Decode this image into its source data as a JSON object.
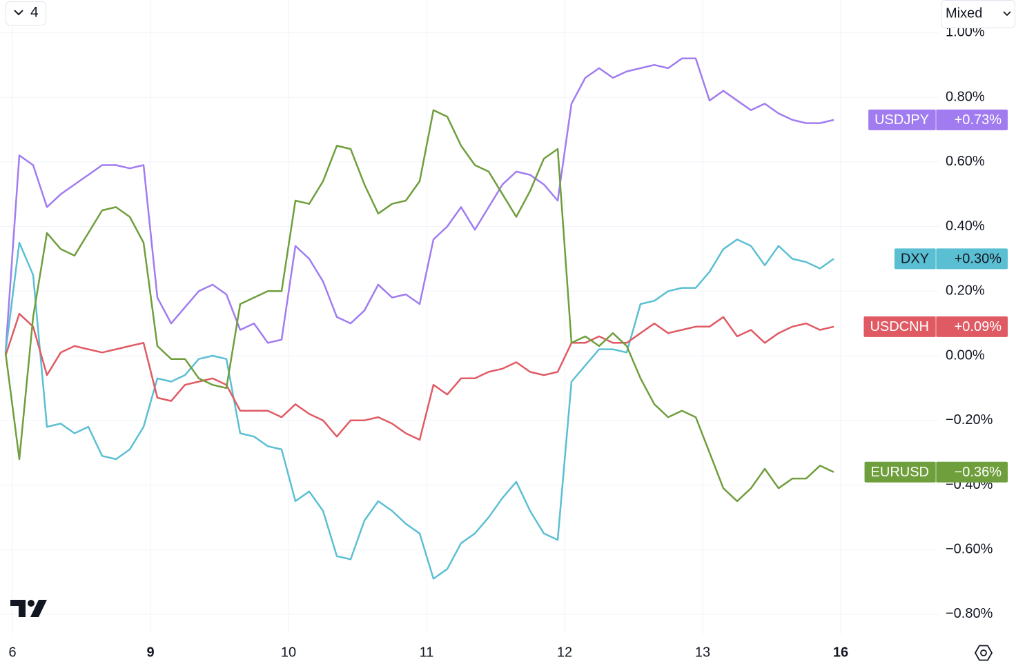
{
  "ui": {
    "interval_button": "4",
    "scale_mode": "Mixed"
  },
  "chart_data": {
    "type": "line",
    "x": [
      -0.05,
      0.05,
      0.15,
      0.25,
      0.35,
      0.45,
      0.55,
      0.65,
      0.75,
      0.85,
      0.95,
      1.05,
      1.15,
      1.25,
      1.35,
      1.45,
      1.55,
      1.65,
      1.75,
      1.85,
      1.95,
      2.05,
      2.15,
      2.25,
      2.35,
      2.45,
      2.55,
      2.65,
      2.75,
      2.85,
      2.95,
      3.05,
      3.15,
      3.25,
      3.35,
      3.45,
      3.55,
      3.65,
      3.75,
      3.85,
      3.95,
      4.05,
      4.15,
      4.25,
      4.35,
      4.45,
      4.55,
      4.65,
      4.75,
      4.85,
      4.95,
      5.05,
      5.15,
      5.25,
      5.35,
      5.45,
      5.55,
      5.65,
      5.75,
      5.85,
      5.95
    ],
    "xlim": [
      -0.09,
      6.71
    ],
    "xticks": [
      {
        "value": 0,
        "label": "6"
      },
      {
        "value": 1,
        "label": "9"
      },
      {
        "value": 2,
        "label": "10"
      },
      {
        "value": 3,
        "label": "11"
      },
      {
        "value": 4,
        "label": "12"
      },
      {
        "value": 5,
        "label": "13"
      },
      {
        "value": 6,
        "label": "16"
      }
    ],
    "ylim": [
      -0.862,
      1.101
    ],
    "yticks": [
      {
        "value": -0.8,
        "label": "−0.80%"
      },
      {
        "value": -0.6,
        "label": "−0.60%"
      },
      {
        "value": -0.4,
        "label": "−0.40%"
      },
      {
        "value": -0.2,
        "label": "−0.20%"
      },
      {
        "value": 0,
        "label": "0.00%"
      },
      {
        "value": 0.2,
        "label": "0.20%"
      },
      {
        "value": 0.4,
        "label": "0.40%"
      },
      {
        "value": 0.6,
        "label": "0.60%"
      },
      {
        "value": 0.8,
        "label": "0.80%"
      },
      {
        "value": 1.0,
        "label": "1.00%"
      }
    ],
    "grid": true,
    "series": [
      {
        "name": "USDJPY",
        "color": "#a07cf0",
        "values": [
          0.01,
          0.62,
          0.59,
          0.46,
          0.5,
          0.53,
          0.56,
          0.59,
          0.59,
          0.58,
          0.59,
          0.18,
          0.1,
          0.15,
          0.2,
          0.22,
          0.19,
          0.08,
          0.1,
          0.04,
          0.05,
          0.34,
          0.3,
          0.23,
          0.12,
          0.1,
          0.14,
          0.22,
          0.18,
          0.19,
          0.16,
          0.36,
          0.4,
          0.46,
          0.39,
          0.46,
          0.53,
          0.57,
          0.56,
          0.53,
          0.48,
          0.78,
          0.86,
          0.89,
          0.86,
          0.88,
          0.89,
          0.9,
          0.89,
          0.92,
          0.92,
          0.79,
          0.82,
          0.79,
          0.76,
          0.78,
          0.75,
          0.73,
          0.72,
          0.72,
          0.73
        ],
        "value_labels": [
          null,
          null,
          null,
          null,
          null,
          null,
          null,
          null,
          null,
          null,
          null,
          null,
          null,
          null,
          null,
          null,
          null,
          null,
          null,
          null,
          null,
          null,
          null,
          null,
          null,
          null,
          null,
          null,
          null,
          null,
          null,
          null,
          null,
          null,
          null,
          null,
          null,
          null,
          null,
          null,
          null,
          null,
          null,
          null,
          null,
          null,
          null,
          null,
          null,
          null,
          null,
          null,
          null,
          null,
          null,
          null,
          null,
          null,
          null,
          null,
          "+0.73%"
        ]
      },
      {
        "name": "DXY",
        "color": "#5bbfd3",
        "values": [
          0.01,
          0.35,
          0.25,
          -0.22,
          -0.21,
          -0.24,
          -0.22,
          -0.31,
          -0.32,
          -0.29,
          -0.22,
          -0.07,
          -0.08,
          -0.06,
          -0.01,
          0.0,
          -0.01,
          -0.24,
          -0.25,
          -0.28,
          -0.29,
          -0.45,
          -0.42,
          -0.48,
          -0.62,
          -0.63,
          -0.51,
          -0.45,
          -0.48,
          -0.52,
          -0.55,
          -0.69,
          -0.66,
          -0.58,
          -0.55,
          -0.5,
          -0.44,
          -0.39,
          -0.48,
          -0.55,
          -0.57,
          -0.08,
          -0.03,
          0.02,
          0.02,
          0.01,
          0.16,
          0.17,
          0.2,
          0.21,
          0.21,
          0.26,
          0.33,
          0.36,
          0.34,
          0.28,
          0.34,
          0.3,
          0.29,
          0.27,
          0.3
        ],
        "value_labels": [
          null,
          null,
          null,
          null,
          null,
          null,
          null,
          null,
          null,
          null,
          null,
          null,
          null,
          null,
          null,
          null,
          null,
          null,
          null,
          null,
          null,
          null,
          null,
          null,
          null,
          null,
          null,
          null,
          null,
          null,
          null,
          null,
          null,
          null,
          null,
          null,
          null,
          null,
          null,
          null,
          null,
          null,
          null,
          null,
          null,
          null,
          null,
          null,
          null,
          null,
          null,
          null,
          null,
          null,
          null,
          null,
          null,
          null,
          null,
          null,
          "+0.30%"
        ]
      },
      {
        "name": "USDCNH",
        "color": "#e05a63",
        "values": [
          0.0,
          0.13,
          0.09,
          -0.06,
          0.01,
          0.03,
          0.02,
          0.01,
          0.02,
          0.03,
          0.04,
          -0.13,
          -0.14,
          -0.09,
          -0.08,
          -0.07,
          -0.09,
          -0.17,
          -0.17,
          -0.17,
          -0.19,
          -0.15,
          -0.18,
          -0.2,
          -0.25,
          -0.2,
          -0.2,
          -0.19,
          -0.21,
          -0.24,
          -0.26,
          -0.09,
          -0.12,
          -0.07,
          -0.07,
          -0.05,
          -0.04,
          -0.02,
          -0.05,
          -0.06,
          -0.05,
          0.04,
          0.04,
          0.06,
          0.04,
          0.04,
          0.07,
          0.1,
          0.07,
          0.08,
          0.09,
          0.09,
          0.12,
          0.06,
          0.08,
          0.04,
          0.07,
          0.09,
          0.1,
          0.08,
          0.09
        ],
        "value_labels": [
          null,
          null,
          null,
          null,
          null,
          null,
          null,
          null,
          null,
          null,
          null,
          null,
          null,
          null,
          null,
          null,
          null,
          null,
          null,
          null,
          null,
          null,
          null,
          null,
          null,
          null,
          null,
          null,
          null,
          null,
          null,
          null,
          null,
          null,
          null,
          null,
          null,
          null,
          null,
          null,
          null,
          null,
          null,
          null,
          null,
          null,
          null,
          null,
          null,
          null,
          null,
          null,
          null,
          null,
          null,
          null,
          null,
          null,
          null,
          null,
          "+0.09%"
        ]
      },
      {
        "name": "EURUSD",
        "color": "#6f9e3c",
        "values": [
          0.01,
          -0.32,
          0.12,
          0.38,
          0.33,
          0.31,
          0.38,
          0.45,
          0.46,
          0.43,
          0.35,
          0.03,
          -0.01,
          -0.01,
          -0.07,
          -0.09,
          -0.1,
          0.16,
          0.18,
          0.2,
          0.2,
          0.48,
          0.47,
          0.54,
          0.65,
          0.64,
          0.53,
          0.44,
          0.47,
          0.48,
          0.54,
          0.76,
          0.74,
          0.65,
          0.59,
          0.57,
          0.5,
          0.43,
          0.51,
          0.61,
          0.64,
          0.04,
          0.06,
          0.03,
          0.07,
          0.03,
          -0.07,
          -0.15,
          -0.19,
          -0.17,
          -0.19,
          -0.3,
          -0.41,
          -0.45,
          -0.41,
          -0.35,
          -0.41,
          -0.38,
          -0.38,
          -0.34,
          -0.36
        ],
        "value_labels": [
          null,
          null,
          null,
          null,
          null,
          null,
          null,
          null,
          null,
          null,
          null,
          null,
          null,
          null,
          null,
          null,
          null,
          null,
          null,
          null,
          null,
          null,
          null,
          null,
          null,
          null,
          null,
          null,
          null,
          null,
          null,
          null,
          null,
          null,
          null,
          null,
          null,
          null,
          null,
          null,
          null,
          null,
          null,
          null,
          null,
          null,
          null,
          null,
          null,
          null,
          null,
          null,
          null,
          null,
          null,
          null,
          null,
          null,
          null,
          null,
          "−0.36%"
        ]
      }
    ]
  }
}
